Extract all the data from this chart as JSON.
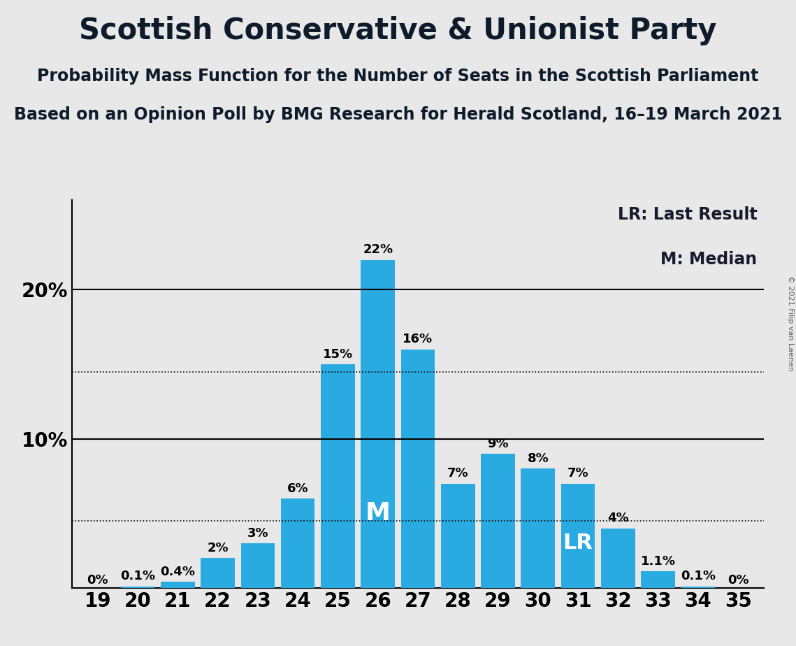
{
  "title": "Scottish Conservative & Unionist Party",
  "subtitle1": "Probability Mass Function for the Number of Seats in the Scottish Parliament",
  "subtitle2": "Based on an Opinion Poll by BMG Research for Herald Scotland, 16–19 March 2021",
  "copyright": "© 2021 Filip van Laenen",
  "seats": [
    19,
    20,
    21,
    22,
    23,
    24,
    25,
    26,
    27,
    28,
    29,
    30,
    31,
    32,
    33,
    34,
    35
  ],
  "probabilities": [
    0.0,
    0.1,
    0.4,
    2.0,
    3.0,
    6.0,
    15.0,
    22.0,
    16.0,
    7.0,
    9.0,
    8.0,
    7.0,
    4.0,
    1.1,
    0.1,
    0.0
  ],
  "labels": [
    "0%",
    "0.1%",
    "0.4%",
    "2%",
    "3%",
    "6%",
    "15%",
    "22%",
    "16%",
    "7%",
    "9%",
    "8%",
    "7%",
    "4%",
    "1.1%",
    "0.1%",
    "0%"
  ],
  "bar_color": "#29ABE2",
  "background_color": "#E8E8E8",
  "median_seat": 26,
  "last_result_seat": 31,
  "dotted_line1": 14.5,
  "dotted_line2": 4.5,
  "legend_text1": "LR: Last Result",
  "legend_text2": "M: Median",
  "title_fontsize": 30,
  "subtitle_fontsize": 17,
  "label_fontsize": 13,
  "axis_fontsize": 20,
  "legend_fontsize": 17
}
